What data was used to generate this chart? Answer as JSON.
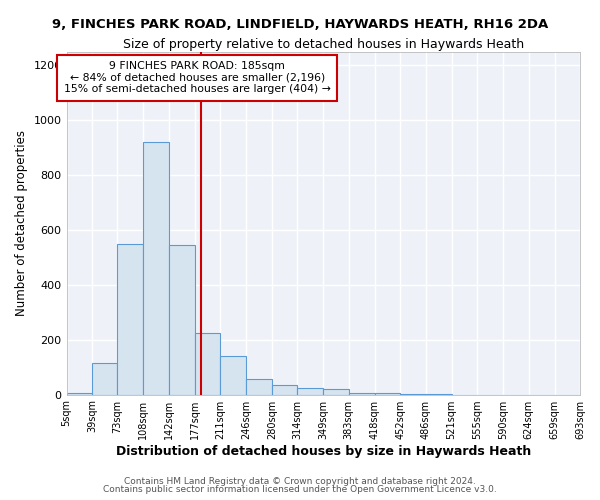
{
  "title": "9, FINCHES PARK ROAD, LINDFIELD, HAYWARDS HEATH, RH16 2DA",
  "subtitle": "Size of property relative to detached houses in Haywards Heath",
  "xlabel": "Distribution of detached houses by size in Haywards Heath",
  "ylabel": "Number of detached properties",
  "bar_color": "#d6e4f0",
  "bar_edge_color": "#5b9bd5",
  "background_color": "#eef2f8",
  "grid_color": "#ffffff",
  "fig_background": "#ffffff",
  "property_line_x": 185,
  "annotation_text": "9 FINCHES PARK ROAD: 185sqm\n← 84% of detached houses are smaller (2,196)\n15% of semi-detached houses are larger (404) →",
  "annotation_box_color": "#ffffff",
  "annotation_border_color": "#cc0000",
  "bin_edges": [
    5,
    39,
    73,
    108,
    142,
    177,
    211,
    246,
    280,
    314,
    349,
    383,
    418,
    452,
    486,
    521,
    555,
    590,
    624,
    659,
    693
  ],
  "bar_heights": [
    5,
    115,
    550,
    920,
    545,
    225,
    140,
    55,
    35,
    25,
    20,
    5,
    5,
    3,
    1,
    0,
    0,
    0,
    0,
    0
  ],
  "ylim": [
    0,
    1250
  ],
  "xlim": [
    5,
    693
  ],
  "yticks": [
    0,
    200,
    400,
    600,
    800,
    1000,
    1200
  ],
  "tick_labels": [
    "5sqm",
    "39sqm",
    "73sqm",
    "108sqm",
    "142sqm",
    "177sqm",
    "211sqm",
    "246sqm",
    "280sqm",
    "314sqm",
    "349sqm",
    "383sqm",
    "418sqm",
    "452sqm",
    "486sqm",
    "521sqm",
    "555sqm",
    "590sqm",
    "624sqm",
    "659sqm",
    "693sqm"
  ],
  "footer_text1": "Contains HM Land Registry data © Crown copyright and database right 2024.",
  "footer_text2": "Contains public sector information licensed under the Open Government Licence v3.0.",
  "title_fontsize": 9.5,
  "subtitle_fontsize": 9,
  "tick_fontsize": 7,
  "ylabel_fontsize": 8.5,
  "xlabel_fontsize": 9,
  "footer_fontsize": 6.5
}
